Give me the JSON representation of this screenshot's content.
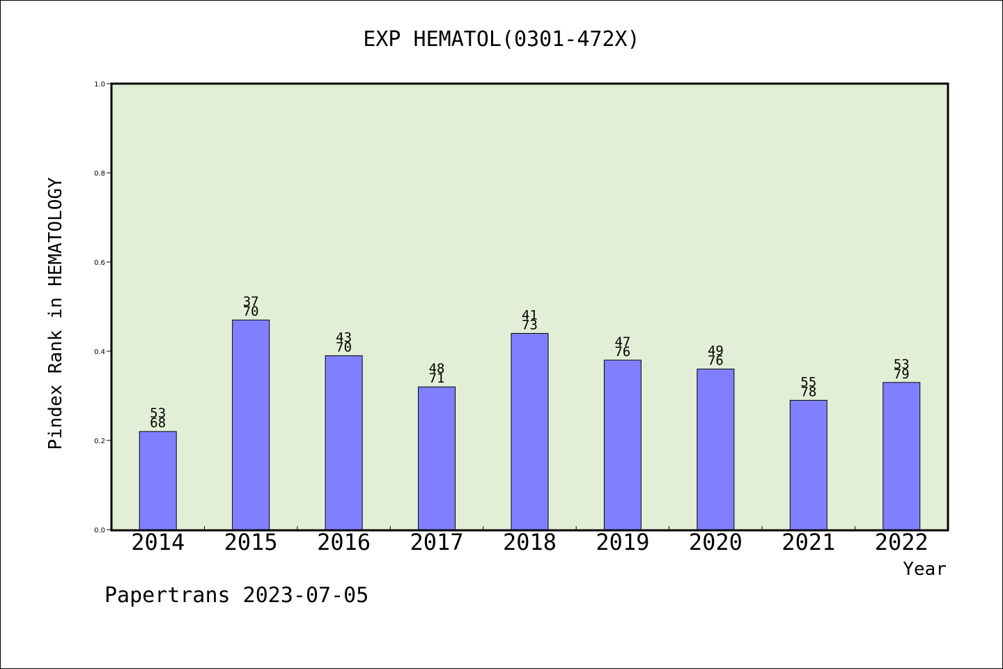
{
  "chart_data": {
    "type": "bar",
    "title": "EXP HEMATOL(0301-472X)",
    "xlabel": "Year",
    "ylabel": "Pindex Rank in HEMATOLOGY",
    "ylim": [
      0,
      1.0
    ],
    "yticks": [
      "0.0",
      "0.2",
      "0.4",
      "0.6",
      "0.8",
      "1.0"
    ],
    "categories": [
      "2014",
      "2015",
      "2016",
      "2017",
      "2018",
      "2019",
      "2020",
      "2021",
      "2022"
    ],
    "values": [
      0.22,
      0.47,
      0.39,
      0.32,
      0.44,
      0.38,
      0.36,
      0.29,
      0.33
    ],
    "labels_top": [
      "53",
      "37",
      "43",
      "48",
      "41",
      "47",
      "49",
      "55",
      "53"
    ],
    "labels_bottom": [
      "68",
      "70",
      "70",
      "71",
      "73",
      "76",
      "76",
      "78",
      "79"
    ],
    "grid": false,
    "colors": {
      "bar": "#8080ff",
      "plot_bg": "#e2efd6",
      "axis": "#000000"
    }
  },
  "footer": "Papertrans 2023-07-05"
}
